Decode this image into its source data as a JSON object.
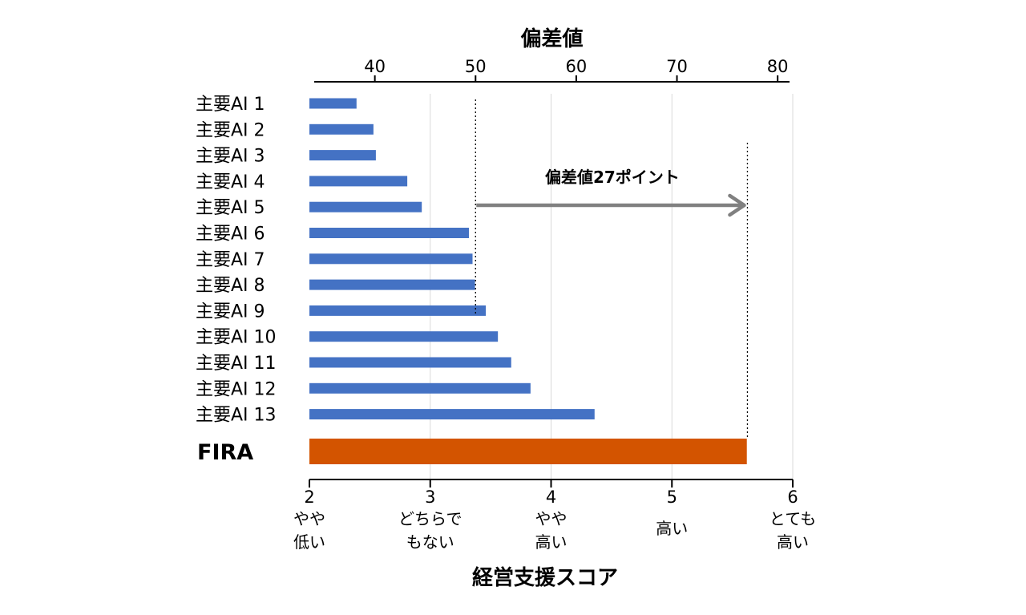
{
  "colors": {
    "bar": "#4472C4",
    "highlight_bar": "#D35400",
    "arrow": "#808080",
    "grid": "#d9d9d9",
    "axis": "#000000"
  },
  "chart_data": {
    "type": "bar",
    "orientation": "horizontal",
    "categories": [
      "主要AI 1",
      "主要AI 2",
      "主要AI 3",
      "主要AI 4",
      "主要AI 5",
      "主要AI 6",
      "主要AI 7",
      "主要AI 8",
      "主要AI 9",
      "主要AI 10",
      "主要AI 11",
      "主要AI 12",
      "主要AI 13"
    ],
    "values": [
      2.39,
      2.53,
      2.55,
      2.81,
      2.93,
      3.32,
      3.35,
      3.37,
      3.46,
      3.56,
      3.67,
      3.83,
      4.36
    ],
    "highlight": {
      "label": "FIRA",
      "value": 5.62
    },
    "x_axis": {
      "title": "経営支援スコア",
      "range": [
        2,
        6
      ],
      "ticks": [
        2,
        3,
        4,
        5,
        6
      ],
      "tick_descriptions": [
        [
          "やや",
          "低い"
        ],
        [
          "どちらで",
          "もない"
        ],
        [
          "やや",
          "高い"
        ],
        [
          "高い"
        ],
        [
          "とても",
          "高い"
        ]
      ]
    },
    "x2_axis": {
      "title": "偏差値",
      "range": [
        33.5,
        81.5
      ],
      "ticks": [
        40,
        50,
        60,
        70,
        80
      ]
    },
    "annotation": {
      "text": "偏差値27ポイント",
      "from": 50,
      "to": 77
    },
    "grid": true
  }
}
